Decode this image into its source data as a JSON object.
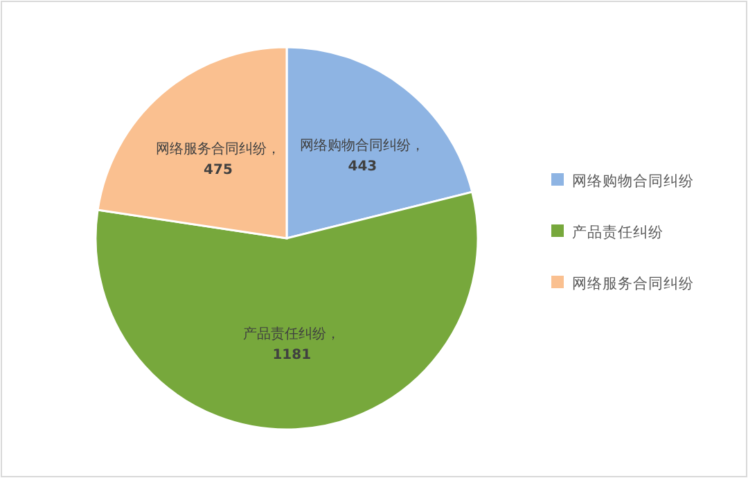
{
  "chart_data": {
    "type": "pie",
    "categories": [
      "网络购物合同纠纷",
      "产品责任纠纷",
      "网络服务合同纠纷"
    ],
    "values": [
      443,
      1181,
      475
    ],
    "colors": [
      "#8eb4e3",
      "#77a83c",
      "#fac090"
    ],
    "value_labels": [
      "网络购物合同纠纷，443",
      "产品责任纠纷，1181",
      "网络服务合同纠纷，475"
    ],
    "legend": "right"
  }
}
